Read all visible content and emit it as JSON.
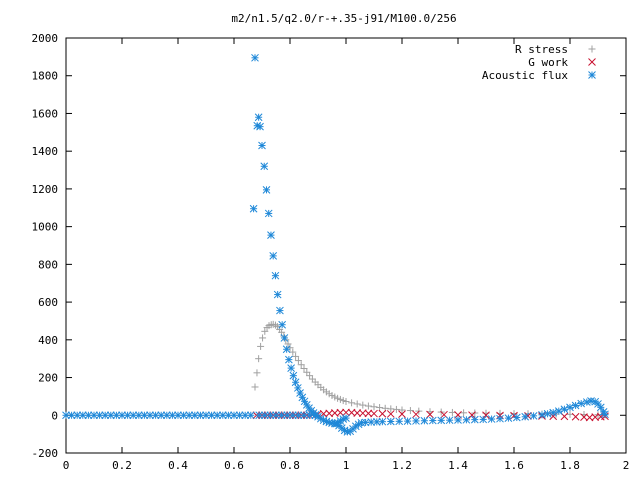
{
  "chart_data": {
    "type": "scatter",
    "title": "m2/n1.5/q2.0/r-+.35-j91/M100.0/256",
    "xlabel": "",
    "ylabel": "",
    "xlim": [
      0,
      2
    ],
    "ylim": [
      -200,
      2000
    ],
    "grid": false,
    "legend_position": "top-right",
    "x_ticks": [
      0,
      0.2,
      0.4,
      0.6,
      0.8,
      1,
      1.2,
      1.4,
      1.6,
      1.8,
      2
    ],
    "y_ticks": [
      -200,
      0,
      200,
      400,
      600,
      800,
      1000,
      1200,
      1400,
      1600,
      1800,
      2000
    ],
    "series": [
      {
        "name": "R stress",
        "marker": "plus",
        "color": "#a0a0a0",
        "points": [
          [
            0.675,
            150
          ],
          [
            0.682,
            225
          ],
          [
            0.688,
            300
          ],
          [
            0.695,
            365
          ],
          [
            0.702,
            410
          ],
          [
            0.71,
            445
          ],
          [
            0.718,
            465
          ],
          [
            0.725,
            475
          ],
          [
            0.733,
            480
          ],
          [
            0.74,
            482
          ],
          [
            0.748,
            478
          ],
          [
            0.755,
            470
          ],
          [
            0.763,
            455
          ],
          [
            0.77,
            440
          ],
          [
            0.778,
            420
          ],
          [
            0.785,
            400
          ],
          [
            0.793,
            378
          ],
          [
            0.8,
            358
          ],
          [
            0.81,
            335
          ],
          [
            0.82,
            312
          ],
          [
            0.83,
            290
          ],
          [
            0.84,
            268
          ],
          [
            0.85,
            248
          ],
          [
            0.86,
            228
          ],
          [
            0.87,
            210
          ],
          [
            0.88,
            192
          ],
          [
            0.89,
            176
          ],
          [
            0.9,
            162
          ],
          [
            0.91,
            148
          ],
          [
            0.92,
            135
          ],
          [
            0.93,
            124
          ],
          [
            0.94,
            114
          ],
          [
            0.95,
            105
          ],
          [
            0.96,
            97
          ],
          [
            0.97,
            90
          ],
          [
            0.98,
            84
          ],
          [
            0.99,
            78
          ],
          [
            1.0,
            73
          ],
          [
            1.02,
            66
          ],
          [
            1.04,
            60
          ],
          [
            1.06,
            54
          ],
          [
            1.08,
            49
          ],
          [
            1.1,
            45
          ],
          [
            1.12,
            41
          ],
          [
            1.14,
            37
          ],
          [
            1.16,
            34
          ],
          [
            1.18,
            31
          ],
          [
            1.2,
            28
          ],
          [
            1.23,
            25
          ],
          [
            1.26,
            22
          ],
          [
            1.3,
            19
          ],
          [
            1.34,
            17
          ],
          [
            1.38,
            15
          ],
          [
            1.42,
            13
          ],
          [
            1.46,
            12
          ],
          [
            1.5,
            11
          ],
          [
            1.55,
            10
          ],
          [
            1.6,
            9
          ],
          [
            1.65,
            8
          ],
          [
            1.7,
            7
          ],
          [
            1.75,
            6
          ],
          [
            1.8,
            5
          ],
          [
            1.85,
            4
          ],
          [
            1.9,
            3
          ],
          [
            1.925,
            2
          ]
        ]
      },
      {
        "name": "G work",
        "marker": "cross",
        "color": "#c8102e",
        "points": [
          [
            0.68,
            0
          ],
          [
            0.7,
            0
          ],
          [
            0.72,
            0
          ],
          [
            0.74,
            0
          ],
          [
            0.76,
            0
          ],
          [
            0.78,
            0
          ],
          [
            0.8,
            0
          ],
          [
            0.82,
            0
          ],
          [
            0.84,
            0
          ],
          [
            0.86,
            0
          ],
          [
            0.88,
            2
          ],
          [
            0.9,
            5
          ],
          [
            0.92,
            8
          ],
          [
            0.94,
            10
          ],
          [
            0.96,
            12
          ],
          [
            0.98,
            14
          ],
          [
            1.0,
            15
          ],
          [
            1.02,
            14
          ],
          [
            1.04,
            12
          ],
          [
            1.06,
            11
          ],
          [
            1.08,
            10
          ],
          [
            1.1,
            9
          ],
          [
            1.13,
            8
          ],
          [
            1.16,
            7
          ],
          [
            1.2,
            6
          ],
          [
            1.25,
            5
          ],
          [
            1.3,
            4
          ],
          [
            1.35,
            3
          ],
          [
            1.4,
            2
          ],
          [
            1.45,
            1
          ],
          [
            1.5,
            0
          ],
          [
            1.55,
            -1
          ],
          [
            1.6,
            -2
          ],
          [
            1.65,
            -3
          ],
          [
            1.7,
            -4
          ],
          [
            1.74,
            -5
          ],
          [
            1.78,
            -6
          ],
          [
            1.82,
            -8
          ],
          [
            1.85,
            -10
          ],
          [
            1.87,
            -12
          ],
          [
            1.89,
            -10
          ],
          [
            1.91,
            -8
          ],
          [
            1.925,
            -5
          ]
        ]
      },
      {
        "name": "Acoustic flux",
        "marker": "star",
        "color": "#1f88d8",
        "points": [
          [
            0.0,
            0
          ],
          [
            0.02,
            0
          ],
          [
            0.04,
            0
          ],
          [
            0.06,
            0
          ],
          [
            0.08,
            0
          ],
          [
            0.1,
            0
          ],
          [
            0.12,
            0
          ],
          [
            0.14,
            0
          ],
          [
            0.16,
            0
          ],
          [
            0.18,
            0
          ],
          [
            0.2,
            0
          ],
          [
            0.22,
            0
          ],
          [
            0.24,
            0
          ],
          [
            0.26,
            0
          ],
          [
            0.28,
            0
          ],
          [
            0.3,
            0
          ],
          [
            0.32,
            0
          ],
          [
            0.34,
            0
          ],
          [
            0.36,
            0
          ],
          [
            0.38,
            0
          ],
          [
            0.4,
            0
          ],
          [
            0.42,
            0
          ],
          [
            0.44,
            0
          ],
          [
            0.46,
            0
          ],
          [
            0.48,
            0
          ],
          [
            0.5,
            0
          ],
          [
            0.52,
            0
          ],
          [
            0.54,
            0
          ],
          [
            0.56,
            0
          ],
          [
            0.58,
            0
          ],
          [
            0.6,
            0
          ],
          [
            0.62,
            0
          ],
          [
            0.64,
            0
          ],
          [
            0.66,
            0
          ],
          [
            0.67,
            1095
          ],
          [
            0.675,
            1895
          ],
          [
            0.683,
            1535
          ],
          [
            0.688,
            1580
          ],
          [
            0.693,
            1530
          ],
          [
            0.7,
            1430
          ],
          [
            0.708,
            1320
          ],
          [
            0.716,
            1195
          ],
          [
            0.724,
            1070
          ],
          [
            0.732,
            955
          ],
          [
            0.74,
            845
          ],
          [
            0.748,
            740
          ],
          [
            0.756,
            640
          ],
          [
            0.764,
            555
          ],
          [
            0.772,
            480
          ],
          [
            0.78,
            410
          ],
          [
            0.788,
            350
          ],
          [
            0.796,
            295
          ],
          [
            0.804,
            250
          ],
          [
            0.812,
            210
          ],
          [
            0.82,
            175
          ],
          [
            0.828,
            145
          ],
          [
            0.836,
            118
          ],
          [
            0.844,
            95
          ],
          [
            0.852,
            74
          ],
          [
            0.86,
            55
          ],
          [
            0.868,
            38
          ],
          [
            0.876,
            24
          ],
          [
            0.884,
            12
          ],
          [
            0.892,
            2
          ],
          [
            0.9,
            -8
          ],
          [
            0.91,
            -18
          ],
          [
            0.92,
            -26
          ],
          [
            0.93,
            -33
          ],
          [
            0.94,
            -38
          ],
          [
            0.95,
            -42
          ],
          [
            0.96,
            -44
          ],
          [
            0.97,
            -40
          ],
          [
            0.98,
            -30
          ],
          [
            0.99,
            -20
          ],
          [
            1.0,
            -15
          ],
          [
            0.965,
            -45
          ],
          [
            0.975,
            -55
          ],
          [
            0.985,
            -68
          ],
          [
            0.995,
            -80
          ],
          [
            1.005,
            -88
          ],
          [
            1.015,
            -85
          ],
          [
            1.025,
            -72
          ],
          [
            1.035,
            -58
          ],
          [
            1.045,
            -48
          ],
          [
            1.055,
            -40
          ],
          [
            1.07,
            -38
          ],
          [
            1.09,
            -36
          ],
          [
            1.11,
            -35
          ],
          [
            1.13,
            -34
          ],
          [
            1.16,
            -33
          ],
          [
            1.19,
            -32
          ],
          [
            1.22,
            -31
          ],
          [
            1.25,
            -30
          ],
          [
            1.28,
            -29
          ],
          [
            1.31,
            -28
          ],
          [
            1.34,
            -27
          ],
          [
            1.37,
            -26
          ],
          [
            1.4,
            -25
          ],
          [
            1.43,
            -24
          ],
          [
            1.46,
            -23
          ],
          [
            1.49,
            -22
          ],
          [
            1.52,
            -20
          ],
          [
            1.55,
            -18
          ],
          [
            1.58,
            -15
          ],
          [
            1.61,
            -12
          ],
          [
            1.64,
            -8
          ],
          [
            1.67,
            -3
          ],
          [
            1.7,
            2
          ],
          [
            1.72,
            8
          ],
          [
            1.74,
            14
          ],
          [
            1.76,
            22
          ],
          [
            1.78,
            32
          ],
          [
            1.8,
            42
          ],
          [
            1.82,
            52
          ],
          [
            1.84,
            62
          ],
          [
            1.86,
            70
          ],
          [
            1.875,
            76
          ],
          [
            1.89,
            72
          ],
          [
            1.9,
            60
          ],
          [
            1.91,
            42
          ],
          [
            1.92,
            18
          ],
          [
            1.925,
            5
          ],
          [
            0.69,
            0
          ],
          [
            0.71,
            0
          ],
          [
            0.73,
            0
          ],
          [
            0.75,
            0
          ],
          [
            0.77,
            0
          ],
          [
            0.79,
            0
          ],
          [
            0.81,
            0
          ],
          [
            0.83,
            0
          ],
          [
            0.85,
            0
          ],
          [
            0.87,
            0
          ],
          [
            0.89,
            0
          ]
        ]
      }
    ]
  }
}
